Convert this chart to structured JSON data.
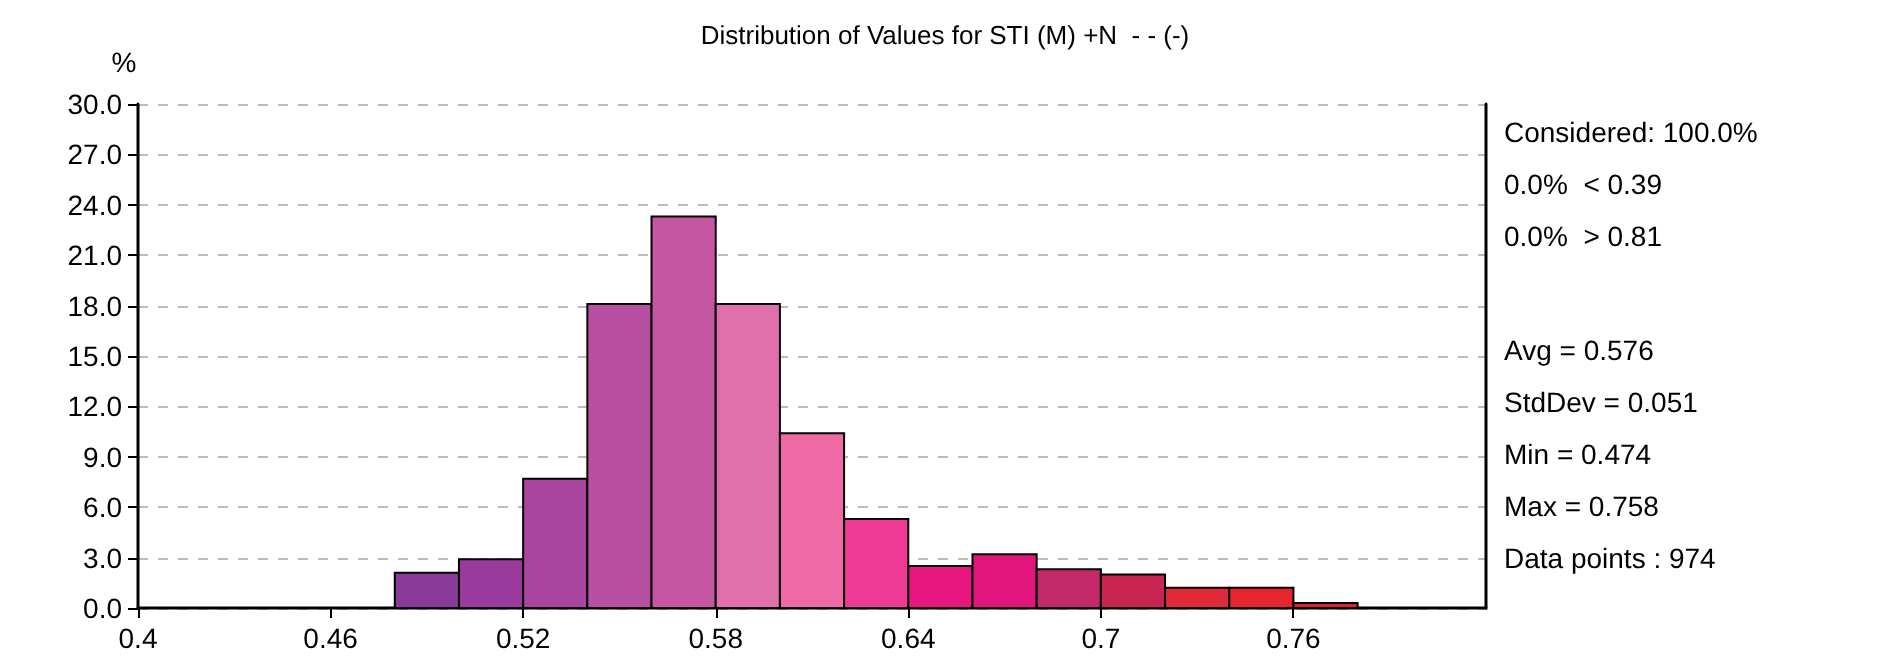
{
  "chart_data": {
    "type": "histogram",
    "title": "Distribution of Values for STI (M) +N  - - (-)",
    "ylabel": "%",
    "bins": [
      0.48,
      0.5,
      0.52,
      0.54,
      0.56,
      0.58,
      0.6,
      0.62,
      0.64,
      0.66,
      0.68,
      0.7,
      0.72,
      0.74,
      0.76,
      0.78
    ],
    "values": [
      2.1,
      2.9,
      7.7,
      18.1,
      23.3,
      18.1,
      10.4,
      5.3,
      2.5,
      3.2,
      2.3,
      2.0,
      1.2,
      1.2,
      0.3
    ],
    "colors": [
      "#8a3a98",
      "#9a3a9c",
      "#a9449f",
      "#b84fa1",
      "#c557a2",
      "#e070ac",
      "#f06aa6",
      "#ee3a94",
      "#e8177f",
      "#e2157c",
      "#c42a69",
      "#c82552",
      "#e02a3a",
      "#e8242e",
      "#dd2328"
    ],
    "xlim": [
      0.4,
      0.82
    ],
    "xticks": [
      0.4,
      0.46,
      0.52,
      0.58,
      0.64,
      0.7,
      0.76
    ],
    "ylim": [
      0,
      30
    ],
    "yticks": [
      {
        "value": 0,
        "label": "0.0"
      },
      {
        "value": 3,
        "label": "3.0"
      },
      {
        "value": 6,
        "label": "6.0"
      },
      {
        "value": 9,
        "label": "9.0"
      },
      {
        "value": 12,
        "label": "12.0"
      },
      {
        "value": 15,
        "label": "15.0"
      },
      {
        "value": 18,
        "label": "18.0"
      },
      {
        "value": 21,
        "label": "21.0"
      },
      {
        "value": 24,
        "label": "24.0"
      },
      {
        "value": 27,
        "label": "27.0"
      },
      {
        "value": 30,
        "label": "30.0"
      }
    ],
    "grid": "y",
    "annotations": [
      "Considered: 100.0%\n0.0%  < 0.39\n0.0%  > 0.81",
      "Avg = 0.576\nStdDev = 0.051\nMin = 0.474\nMax = 0.758\nData points : 974"
    ]
  }
}
